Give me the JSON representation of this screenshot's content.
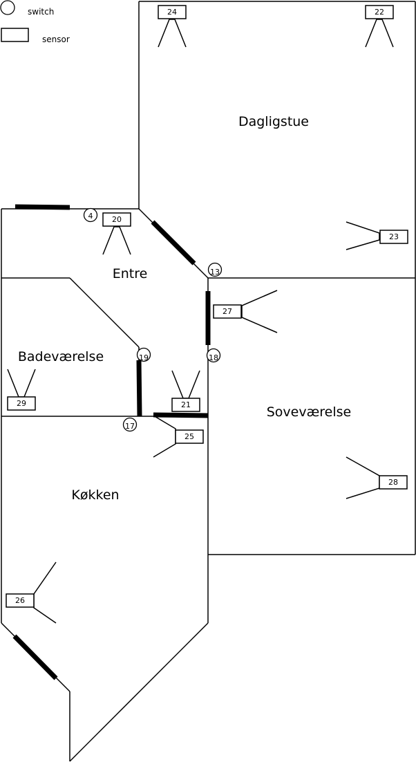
{
  "legend": {
    "switch_label": "switch",
    "sensor_label": "sensor"
  },
  "rooms": {
    "dagligstue": "Dagligstue",
    "entre": "Entre",
    "badevaerelse": "Badeværelse",
    "sovevaerelse": "Soveværelse",
    "kokken": "Køkken"
  },
  "sensors": {
    "s24": "24",
    "s22": "22",
    "s20": "20",
    "s23": "23",
    "s27": "27",
    "s29": "29",
    "s21": "21",
    "s25": "25",
    "s28": "28",
    "s26": "26"
  },
  "switches": {
    "w4": "4",
    "w13": "13",
    "w19": "19",
    "w18": "18",
    "w17": "17"
  }
}
